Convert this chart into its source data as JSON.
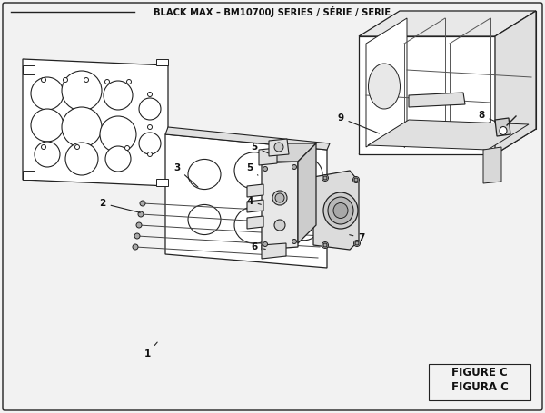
{
  "title": "BLACK MAX – BM10700J SERIES / SÉRIE / SERIE",
  "figure_label": "FIGURE C",
  "figura_label": "FIGURA C",
  "bg_color": "#f2f2f2",
  "lc": "#222222"
}
